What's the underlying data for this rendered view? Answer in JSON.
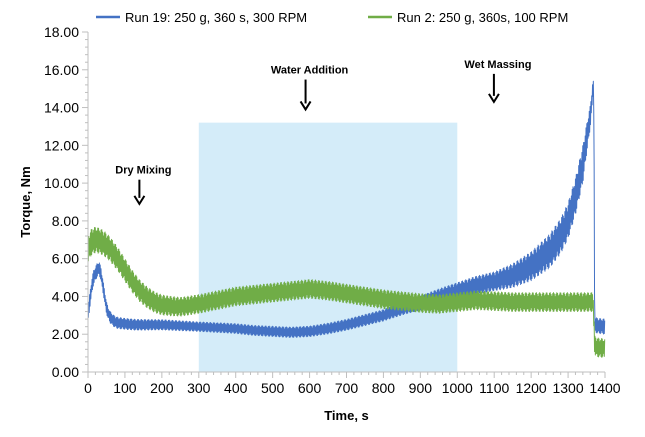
{
  "chart_data": {
    "type": "line",
    "xlabel": "Time, s",
    "ylabel": "Torque, Nm",
    "xlim": [
      0,
      1400
    ],
    "ylim": [
      0,
      18
    ],
    "xticks": [
      0,
      100,
      200,
      300,
      400,
      500,
      600,
      700,
      800,
      900,
      1000,
      1100,
      1200,
      1300,
      1400
    ],
    "yticks": [
      0,
      2,
      4,
      6,
      8,
      10,
      12,
      14,
      16,
      18
    ],
    "xtick_labels": [
      "0",
      "100",
      "200",
      "300",
      "400",
      "500",
      "600",
      "700",
      "800",
      "900",
      "1000",
      "1100",
      "1200",
      "1300",
      "1400"
    ],
    "ytick_labels": [
      "0.00",
      "2.00",
      "4.00",
      "6.00",
      "8.00",
      "10.00",
      "12.00",
      "14.00",
      "16.00",
      "18.00"
    ],
    "grid": false,
    "legend_position": "top",
    "shaded_region": {
      "x": [
        300,
        1000
      ],
      "y": [
        0,
        13.2
      ],
      "color": "#d4ecf9"
    },
    "annotations": [
      {
        "text": "Dry Mixing",
        "x": 150,
        "y": 10.5,
        "arrow_to_y": 8.9
      },
      {
        "text": "Water Addition",
        "x": 600,
        "y": 15.8,
        "arrow_to_y": 13.9
      },
      {
        "text": "Wet Massing",
        "x": 1110,
        "y": 16.1,
        "arrow_to_y": 14.3
      }
    ],
    "series": [
      {
        "name": "Run 19: 250 g, 360 s, 300 RPM",
        "color": "#4472c4",
        "noise_amplitude": [
          [
            0,
            0.4
          ],
          [
            60,
            0.3
          ],
          [
            300,
            0.25
          ],
          [
            800,
            0.3
          ],
          [
            1100,
            0.5
          ],
          [
            1250,
            0.9
          ],
          [
            1340,
            1.0
          ],
          [
            1370,
            0.4
          ]
        ],
        "x": [
          0,
          5,
          10,
          15,
          20,
          25,
          30,
          35,
          40,
          45,
          50,
          55,
          60,
          70,
          80,
          100,
          130,
          160,
          200,
          250,
          300,
          350,
          400,
          450,
          500,
          550,
          600,
          650,
          700,
          750,
          800,
          850,
          900,
          950,
          1000,
          1050,
          1100,
          1150,
          1200,
          1250,
          1280,
          1300,
          1320,
          1340,
          1350,
          1360,
          1365,
          1368,
          1370,
          1372,
          1380,
          1400
        ],
        "y": [
          3.0,
          3.8,
          4.5,
          5.0,
          5.2,
          5.4,
          5.5,
          5.2,
          4.6,
          4.0,
          3.4,
          3.1,
          2.9,
          2.7,
          2.6,
          2.55,
          2.5,
          2.5,
          2.5,
          2.45,
          2.4,
          2.35,
          2.3,
          2.2,
          2.15,
          2.1,
          2.15,
          2.3,
          2.5,
          2.75,
          3.0,
          3.35,
          3.65,
          4.0,
          4.3,
          4.6,
          4.8,
          5.1,
          5.6,
          6.4,
          7.2,
          8.0,
          9.3,
          11.0,
          12.3,
          13.5,
          14.5,
          15.2,
          14.0,
          2.5,
          2.45,
          2.4
        ]
      },
      {
        "name": "Run 2: 250 g, 360s, 100 RPM",
        "color": "#70ad47",
        "noise_amplitude": [
          [
            0,
            0.7
          ],
          [
            100,
            0.6
          ],
          [
            250,
            0.5
          ],
          [
            1000,
            0.5
          ],
          [
            1370,
            0.5
          ]
        ],
        "x": [
          0,
          10,
          20,
          30,
          40,
          50,
          60,
          70,
          80,
          90,
          100,
          120,
          140,
          160,
          180,
          200,
          220,
          250,
          300,
          350,
          400,
          450,
          500,
          550,
          600,
          650,
          700,
          750,
          800,
          850,
          900,
          950,
          1000,
          1050,
          1100,
          1150,
          1200,
          1250,
          1300,
          1350,
          1368,
          1372,
          1380,
          1400
        ],
        "y": [
          6.5,
          6.9,
          7.0,
          6.95,
          6.85,
          6.7,
          6.5,
          6.25,
          6.0,
          5.7,
          5.4,
          4.8,
          4.3,
          3.95,
          3.7,
          3.55,
          3.5,
          3.45,
          3.6,
          3.8,
          4.0,
          4.1,
          4.2,
          4.3,
          4.4,
          4.3,
          4.15,
          4.0,
          3.85,
          3.75,
          3.65,
          3.6,
          3.7,
          3.8,
          3.75,
          3.7,
          3.7,
          3.7,
          3.7,
          3.7,
          3.7,
          1.4,
          1.3,
          1.25
        ]
      }
    ]
  }
}
